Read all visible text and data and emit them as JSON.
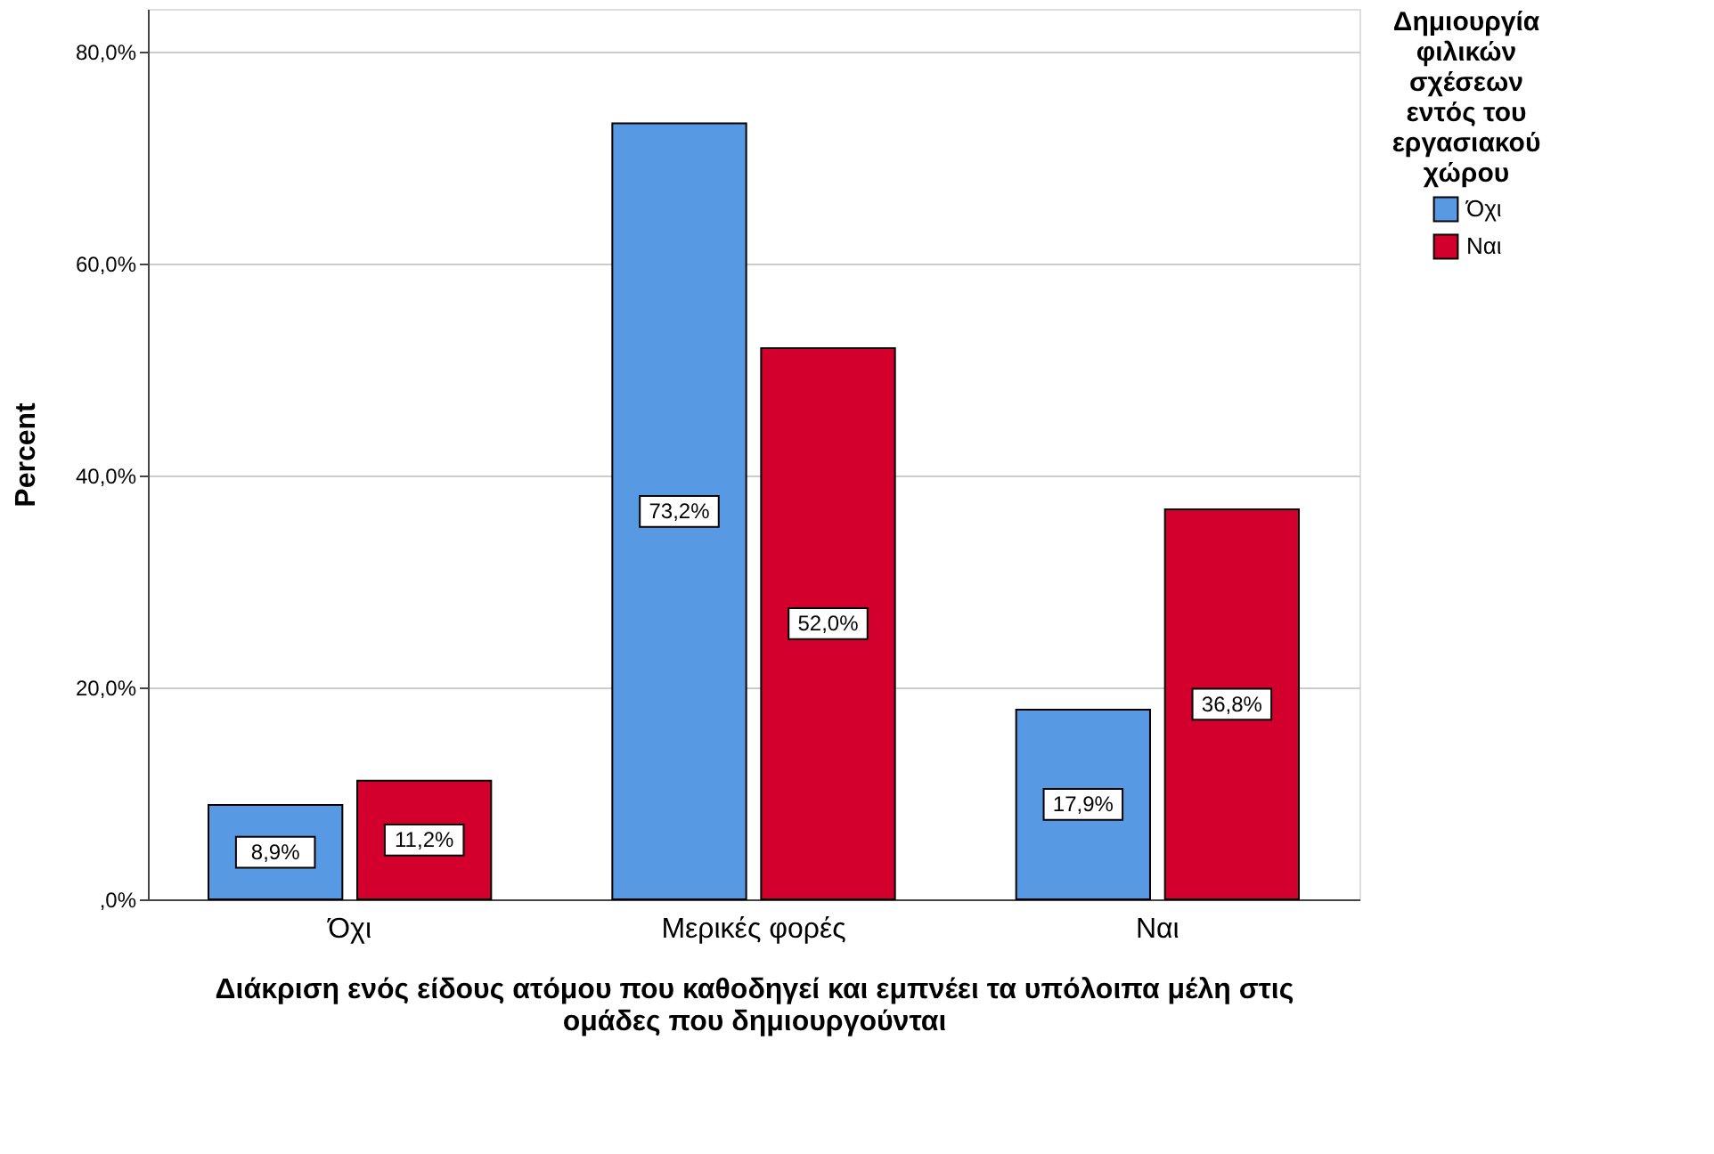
{
  "chart_data": {
    "type": "bar",
    "xlabel": "Διάκριση ενός είδους ατόμου που καθοδηγεί και εμπνέει τα υπόλοιπα μέλη στις ομάδες που δημιουργούνται",
    "ylabel": "Percent",
    "legend_title": "Δημιουργία φιλικών σχέσεων εντός του εργασιακού χώρου",
    "categories": [
      "Όχι",
      "Μερικές φορές",
      "Ναι"
    ],
    "series": [
      {
        "name": "Όχι",
        "color": "#5899e3",
        "values": [
          8.9,
          73.2,
          17.9
        ],
        "value_labels": [
          "8,9%",
          "73,2%",
          "17,9%"
        ]
      },
      {
        "name": "Ναι",
        "color": "#d3002d",
        "values": [
          11.2,
          52.0,
          36.8
        ],
        "value_labels": [
          "11,2%",
          "52,0%",
          "36,8%"
        ]
      }
    ],
    "ylim": [
      0,
      84
    ],
    "yticks": [
      {
        "value": 0,
        "label": ",0%"
      },
      {
        "value": 20,
        "label": "20,0%"
      },
      {
        "value": 40,
        "label": "40,0%"
      },
      {
        "value": 60,
        "label": "60,0%"
      },
      {
        "value": 80,
        "label": "80,0%"
      }
    ],
    "grid": "y",
    "legend": "top right"
  }
}
